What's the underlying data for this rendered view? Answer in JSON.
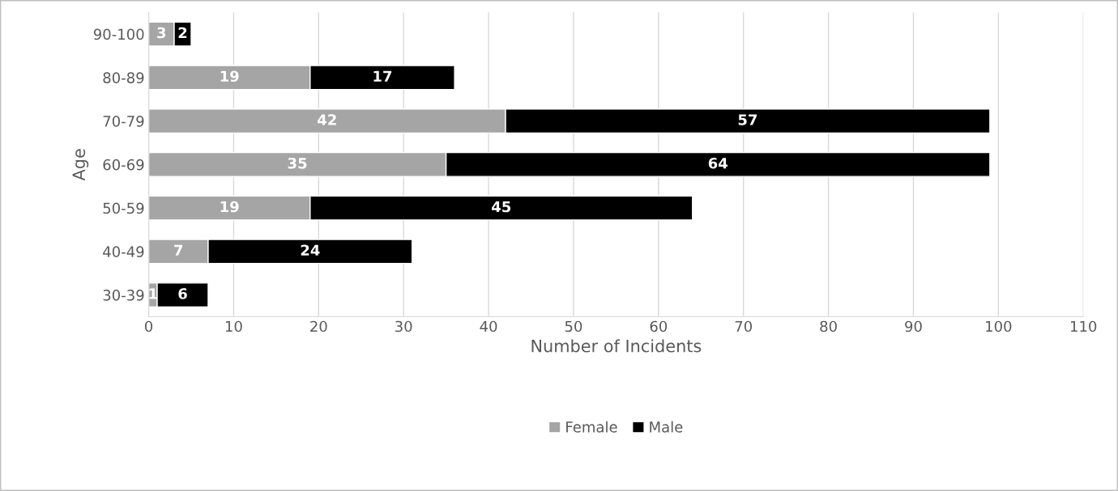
{
  "chart_data": {
    "type": "bar",
    "orientation": "horizontal",
    "stacked": true,
    "categories": [
      "90-100",
      "80-89",
      "70-79",
      "60-69",
      "50-59",
      "40-49",
      "30-39"
    ],
    "series": [
      {
        "name": "Female",
        "color": "#a5a5a5",
        "values": [
          3,
          19,
          42,
          35,
          19,
          7,
          1
        ]
      },
      {
        "name": "Male",
        "color": "#000000",
        "values": [
          2,
          17,
          57,
          64,
          45,
          24,
          6
        ]
      }
    ],
    "xlabel": "Number of Incidents",
    "ylabel": "Age",
    "xlim": [
      0,
      110
    ],
    "xticks": [
      0,
      10,
      20,
      30,
      40,
      50,
      60,
      70,
      80,
      90,
      100,
      110
    ],
    "grid": "x",
    "legend": "bottom",
    "data_labels": true
  }
}
